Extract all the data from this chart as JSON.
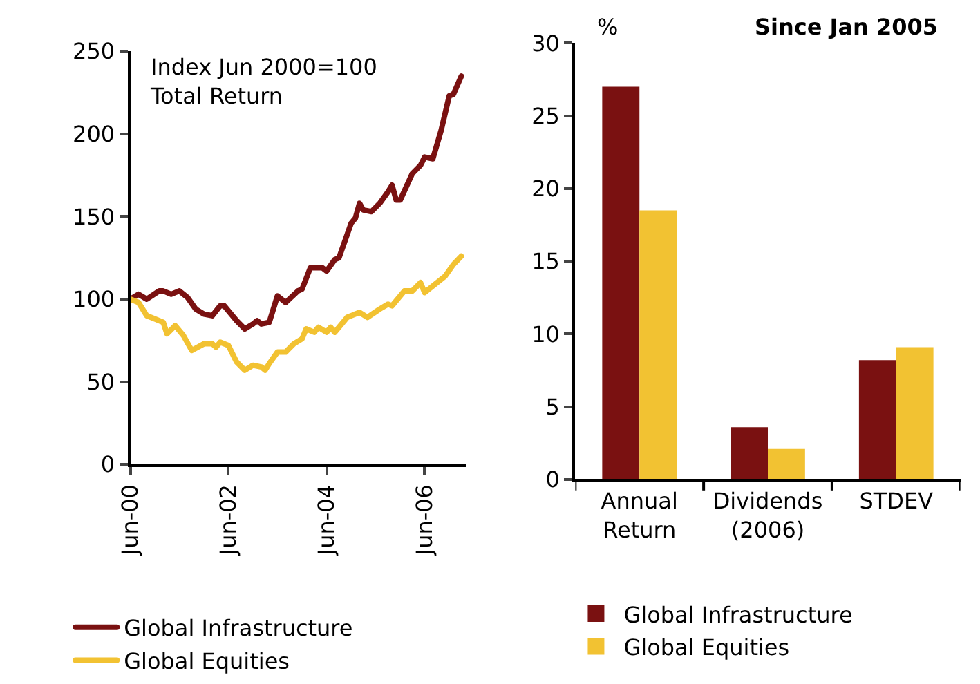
{
  "chart_data": [
    {
      "type": "line",
      "annotations": [
        "Index Jun 2000=100\nTotal Return"
      ],
      "xlim": [
        "2000-06",
        "2007-04"
      ],
      "xticks": [
        {
          "value": "2000-06",
          "label": "Jun-00"
        },
        {
          "value": "2002-06",
          "label": "Jun-02"
        },
        {
          "value": "2004-06",
          "label": "Jun-04"
        },
        {
          "value": "2006-06",
          "label": "Jun-06"
        }
      ],
      "ylim": [
        0,
        250
      ],
      "yticks": [
        0,
        50,
        100,
        150,
        200,
        250
      ],
      "legend": "bottom",
      "marker": "none",
      "line_style": "solid",
      "series": [
        {
          "name": "Global Infrastructure",
          "color": "#7a1111",
          "x": [
            "2000-06",
            "2000-08",
            "2000-10",
            "2001-01",
            "2001-02",
            "2001-04",
            "2001-06",
            "2001-08",
            "2001-10",
            "2001-12",
            "2002-02",
            "2002-04",
            "2002-05",
            "2002-08",
            "2002-10",
            "2002-12",
            "2003-01",
            "2003-02",
            "2003-04",
            "2003-06",
            "2003-08",
            "2003-11",
            "2003-12",
            "2004-02",
            "2004-05",
            "2004-06",
            "2004-08",
            "2004-09",
            "2004-12",
            "2005-01",
            "2005-02",
            "2005-03",
            "2005-05",
            "2005-07",
            "2005-09",
            "2005-10",
            "2005-11",
            "2005-12",
            "2006-03",
            "2006-05",
            "2006-06",
            "2006-08",
            "2006-10",
            "2006-12",
            "2007-01",
            "2007-03"
          ],
          "values": [
            100,
            103,
            100,
            105,
            105,
            103,
            105,
            101,
            94,
            91,
            90,
            96,
            96,
            87,
            82,
            85,
            87,
            85,
            86,
            102,
            98,
            105,
            106,
            119,
            119,
            117,
            124,
            125,
            146,
            149,
            158,
            154,
            153,
            158,
            165,
            169,
            160,
            160,
            176,
            181,
            186,
            185,
            202,
            223,
            224,
            235
          ]
        },
        {
          "name": "Global Equities",
          "color": "#f2c232",
          "x": [
            "2000-06",
            "2000-08",
            "2000-10",
            "2000-11",
            "2001-02",
            "2001-03",
            "2001-05",
            "2001-07",
            "2001-09",
            "2001-12",
            "2002-02",
            "2002-03",
            "2002-04",
            "2002-06",
            "2002-08",
            "2002-10",
            "2002-12",
            "2003-02",
            "2003-03",
            "2003-04",
            "2003-06",
            "2003-08",
            "2003-10",
            "2003-12",
            "2004-01",
            "2004-03",
            "2004-04",
            "2004-06",
            "2004-07",
            "2004-08",
            "2004-11",
            "2005-01",
            "2005-02",
            "2005-04",
            "2005-07",
            "2005-09",
            "2005-10",
            "2006-01",
            "2006-03",
            "2006-05",
            "2006-06",
            "2006-08",
            "2006-11",
            "2007-01",
            "2007-03"
          ],
          "values": [
            100,
            98,
            90,
            89,
            86,
            79,
            84,
            78,
            69,
            73,
            73,
            71,
            74,
            72,
            62,
            57,
            60,
            59,
            57,
            61,
            68,
            68,
            73,
            76,
            82,
            80,
            83,
            80,
            83,
            80,
            89,
            91,
            92,
            89,
            94,
            97,
            96,
            105,
            105,
            110,
            104,
            108,
            114,
            121,
            126
          ]
        }
      ]
    },
    {
      "type": "bar",
      "title": "Since Jan 2005",
      "ylabel": "%",
      "categories": [
        "Annual Return",
        "Dividends (2006)",
        "STDEV"
      ],
      "ylim": [
        0,
        30
      ],
      "yticks": [
        0,
        5,
        10,
        15,
        20,
        25,
        30
      ],
      "legend": "bottom",
      "series": [
        {
          "name": "Global Infrastructure",
          "color": "#7a1111",
          "values": [
            27,
            3.6,
            8.2
          ]
        },
        {
          "name": "Global Equities",
          "color": "#f2c232",
          "values": [
            18.5,
            2.1,
            9.1
          ]
        }
      ]
    }
  ]
}
